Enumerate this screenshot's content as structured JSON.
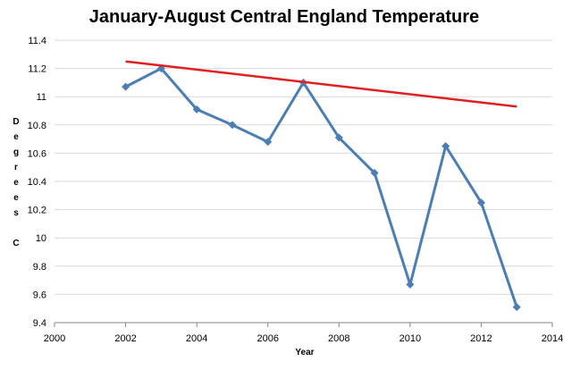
{
  "chart_data": {
    "type": "line",
    "title": "January-August Central England Temperature",
    "xlabel": "Year",
    "ylabel": "Degrees C",
    "xlim": [
      2000,
      2014
    ],
    "ylim": [
      9.4,
      11.4
    ],
    "x_ticks": [
      2000,
      2002,
      2004,
      2006,
      2008,
      2010,
      2012,
      2014
    ],
    "y_ticks": [
      9.4,
      9.6,
      9.8,
      10,
      10.2,
      10.4,
      10.6,
      10.8,
      11,
      11.2,
      11.4
    ],
    "y_tick_labels": [
      "9.4",
      "9.6",
      "9.8",
      "10",
      "10.2",
      "10.4",
      "10.6",
      "10.8",
      "11",
      "11.2",
      "11.4"
    ],
    "x_tick_labels": [
      "2000",
      "2002",
      "2004",
      "2006",
      "2008",
      "2010",
      "2012",
      "2014"
    ],
    "grid": "horizontal",
    "series": [
      {
        "color": "#4a7eb5",
        "marker": "diamond",
        "x": [
          2002,
          2003,
          2004,
          2005,
          2006,
          2007,
          2008,
          2009,
          2010,
          2011,
          2012,
          2013
        ],
        "values": [
          11.07,
          11.2,
          10.91,
          10.8,
          10.68,
          11.1,
          10.71,
          10.46,
          9.67,
          10.65,
          10.25,
          9.51
        ]
      }
    ],
    "trendline": {
      "color": "#e02020",
      "x": [
        2002,
        2013
      ],
      "values": [
        11.25,
        10.93
      ]
    }
  }
}
